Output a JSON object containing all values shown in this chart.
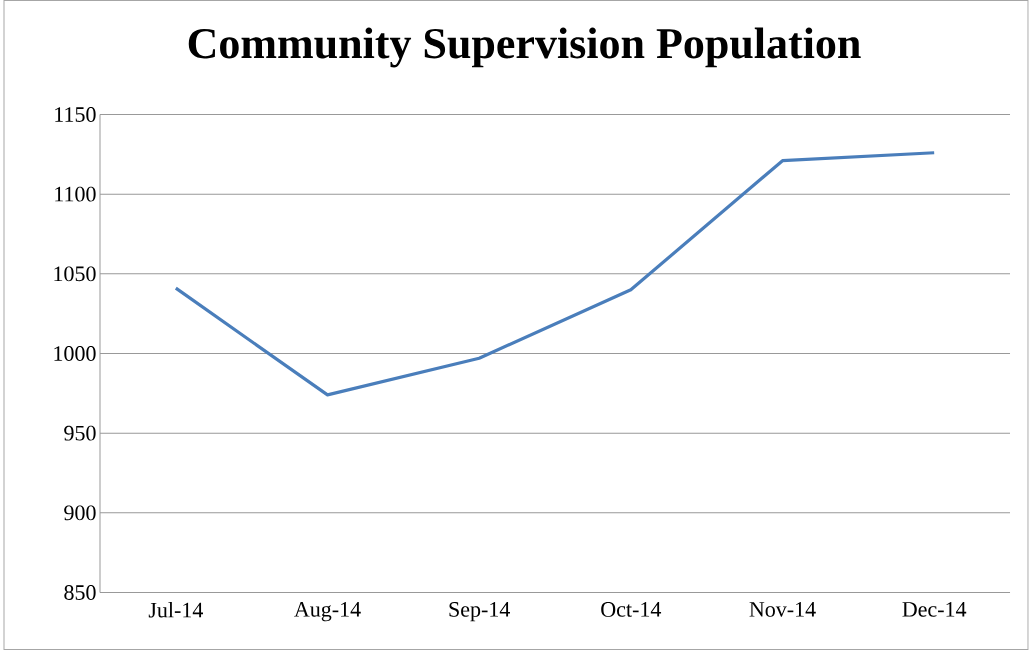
{
  "chart_data": {
    "type": "line",
    "title": "Community Supervision Population",
    "categories": [
      "Jul-14",
      "Aug-14",
      "Sep-14",
      "Oct-14",
      "Nov-14",
      "Dec-14"
    ],
    "series": [
      {
        "color": "#4a7ebb",
        "values": [
          1041,
          974,
          997,
          1040,
          1121,
          1126
        ]
      }
    ],
    "ylim": [
      850,
      1150
    ],
    "yticks": [
      850,
      900,
      950,
      1000,
      1050,
      1100,
      1150
    ],
    "grid": "y",
    "marker": "none",
    "line_style": "solid"
  }
}
